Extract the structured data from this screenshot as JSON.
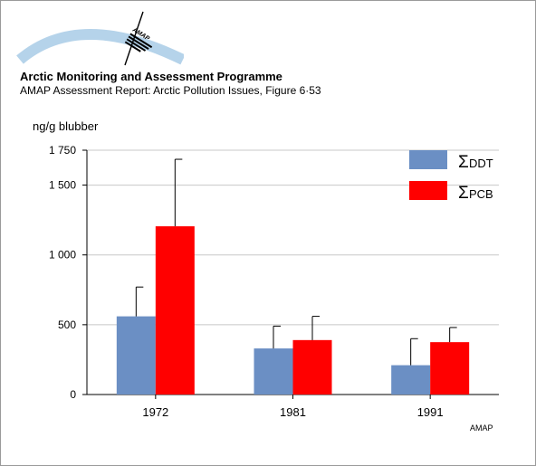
{
  "header": {
    "title": "Arctic Monitoring and Assessment Programme",
    "subtitle": "AMAP Assessment Report: Arctic Pollution Issues, Figure 6·53",
    "logo_text": "AMAP"
  },
  "credit": "AMAP",
  "colors": {
    "ddt": "#6b8fc4",
    "pcb": "#ff0000",
    "grid": "#c8c8c8",
    "logo_arc": "#b5d3ea"
  },
  "chart_data": {
    "type": "bar",
    "ylabel": "ng/g blubber",
    "ylim": [
      0,
      1750
    ],
    "yticks": [
      0,
      500,
      1000,
      1500,
      1750
    ],
    "ytick_labels": [
      "0",
      "500",
      "1 000",
      "1 500",
      "1 750"
    ],
    "categories": [
      "1972",
      "1981",
      "1991"
    ],
    "grid": true,
    "legend_position": "top-right",
    "series": [
      {
        "name": "ΣDDT",
        "sigma": "Σ",
        "label": "DDT",
        "color": "#6b8fc4",
        "values": [
          560,
          330,
          210
        ],
        "error_upper": [
          770,
          490,
          400
        ]
      },
      {
        "name": "ΣPCB",
        "sigma": "Σ",
        "label": "PCB",
        "color": "#ff0000",
        "values": [
          1205,
          390,
          375
        ],
        "error_upper": [
          1685,
          560,
          480
        ]
      }
    ]
  }
}
